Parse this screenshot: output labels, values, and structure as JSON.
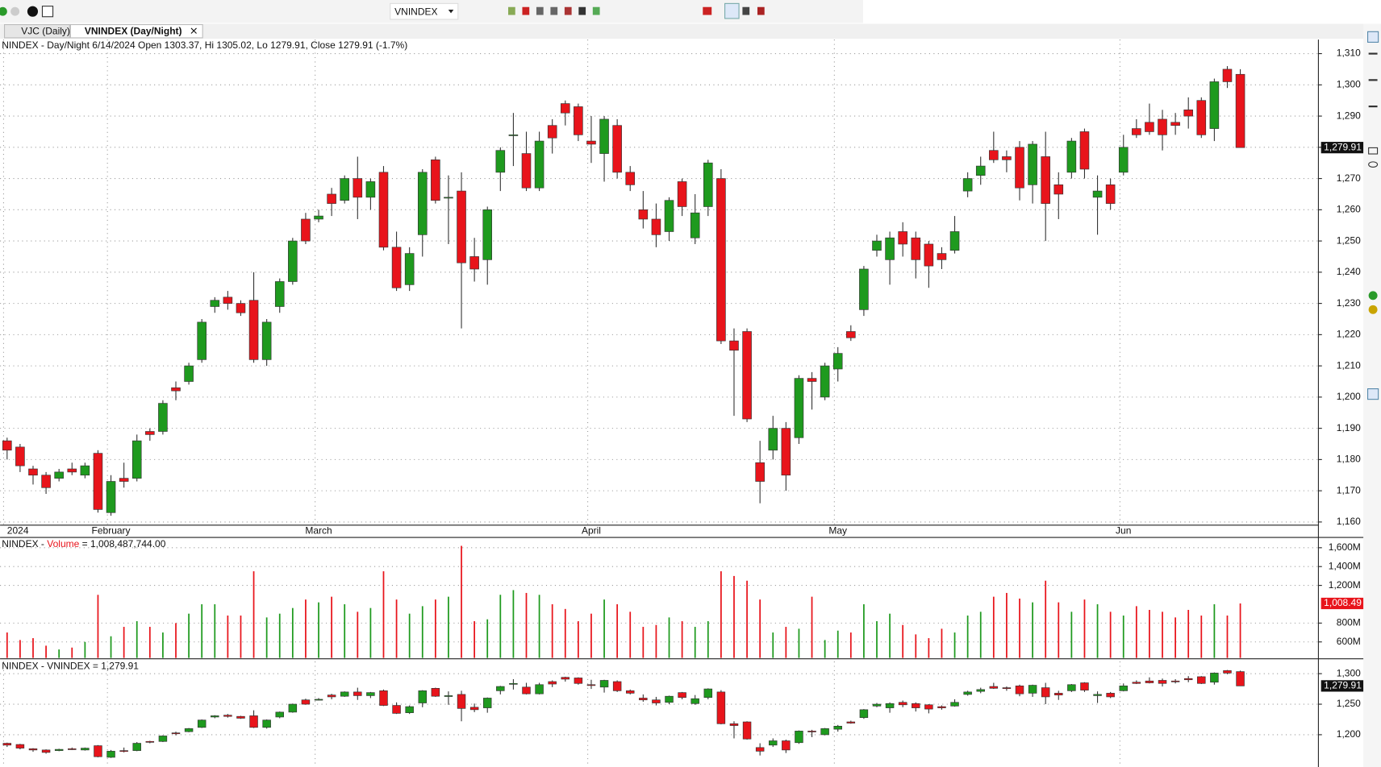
{
  "toolbar": {
    "symbol": "VNINDEX"
  },
  "tabs": [
    "VJC (Daily)",
    "VNINDEX (Day/Night)"
  ],
  "chart_data": [
    {
      "type": "candlestick",
      "title": "NINDEX - Day/Night 6/14/2024 Open 1303.37, Hi 1305.02, Lo 1279.91, Close 1279.91 (-1.7%)",
      "categories": [
        "2024",
        null,
        null,
        null,
        null,
        null,
        null,
        null,
        "February",
        null,
        null,
        null,
        null,
        null,
        null,
        null,
        null,
        null,
        null,
        null,
        null,
        null,
        null,
        null,
        "March",
        null,
        null,
        null,
        null,
        null,
        null,
        null,
        null,
        null,
        null,
        null,
        null,
        null,
        null,
        null,
        null,
        null,
        null,
        null,
        null,
        "April",
        null,
        null,
        null,
        null,
        null,
        null,
        null,
        null,
        null,
        null,
        null,
        null,
        null,
        null,
        null,
        null,
        null,
        null,
        "May",
        null,
        null,
        null,
        null,
        null,
        null,
        null,
        null,
        null,
        null,
        null,
        null,
        null,
        null,
        null,
        null,
        null,
        null,
        null,
        null,
        null,
        "Jun",
        null,
        null,
        null,
        null,
        null,
        null,
        null,
        null,
        null
      ],
      "open": [
        1186,
        1184,
        1177,
        1175,
        1174,
        1177,
        1175,
        1182,
        1163,
        1174,
        1174,
        1189,
        1189,
        1203,
        1205,
        1212,
        1229,
        1232,
        1230,
        1231,
        1212,
        1229,
        1237,
        1257,
        1257,
        1265,
        1263,
        1270,
        1264,
        1272,
        1248,
        1236,
        1252,
        1276,
        1264,
        1266,
        1245,
        1244,
        1272,
        1284,
        1278,
        1267,
        1287,
        1294,
        1293,
        1282,
        1278,
        1287,
        1272,
        1260,
        1257,
        1253,
        1269,
        1251,
        1261,
        1270,
        1218,
        1221,
        1179,
        1183,
        1190,
        1187,
        1206,
        1200,
        1209,
        1221,
        1228,
        1247,
        1244,
        1253,
        1251,
        1249,
        1246,
        1247,
        1266,
        1271,
        1279,
        1277,
        1280,
        1268,
        1277,
        1268,
        1272,
        1285,
        1264,
        1268,
        1272,
        1286,
        1288,
        1289,
        1288,
        1292,
        1295,
        1286,
        1305,
        1303.37
      ],
      "high": [
        1187,
        1185,
        1178,
        1176,
        1177,
        1179,
        1179,
        1183,
        1175,
        1179,
        1188,
        1190,
        1199,
        1205,
        1211,
        1225,
        1232,
        1234,
        1231,
        1240,
        1225,
        1238,
        1251,
        1259,
        1260,
        1267,
        1271,
        1277,
        1270,
        1274,
        1253,
        1248,
        1273,
        1277,
        1271,
        1272,
        1251,
        1261,
        1280,
        1291,
        1285,
        1285,
        1289,
        1295,
        1294,
        1290,
        1290,
        1289,
        1274,
        1266,
        1262,
        1264,
        1270,
        1265,
        1276,
        1273,
        1222,
        1222,
        1186,
        1194,
        1192,
        1207,
        1208,
        1211,
        1216,
        1223,
        1242,
        1252,
        1253,
        1256,
        1253,
        1250,
        1248,
        1258,
        1272,
        1277,
        1285,
        1279,
        1282,
        1282,
        1285,
        1272,
        1283,
        1286,
        1271,
        1270,
        1284,
        1289,
        1294,
        1292,
        1291,
        1296,
        1296,
        1302,
        1306,
        1305.02
      ],
      "low": [
        1180,
        1176,
        1172,
        1169,
        1173,
        1175,
        1174,
        1163,
        1162,
        1171,
        1173,
        1186,
        1188,
        1199,
        1204,
        1211,
        1227,
        1228,
        1226,
        1211,
        1210,
        1227,
        1236,
        1249,
        1256,
        1258,
        1262,
        1257,
        1260,
        1247,
        1234,
        1234,
        1245,
        1262,
        1249,
        1222,
        1237,
        1236,
        1266,
        1274,
        1266,
        1266,
        1278,
        1287,
        1282,
        1275,
        1269,
        1270,
        1266,
        1254,
        1248,
        1250,
        1258,
        1249,
        1258,
        1217,
        1194,
        1192,
        1166,
        1180,
        1170,
        1185,
        1196,
        1199,
        1205,
        1218,
        1226,
        1245,
        1236,
        1245,
        1238,
        1235,
        1241,
        1246,
        1264,
        1268,
        1275,
        1272,
        1263,
        1262,
        1250,
        1257,
        1270,
        1270,
        1252,
        1260,
        1271,
        1283,
        1284,
        1279,
        1284,
        1286,
        1283,
        1282,
        1299,
        1279.91
      ],
      "close": [
        1183,
        1178,
        1175,
        1171,
        1176,
        1176,
        1178,
        1164,
        1173,
        1173,
        1186,
        1188,
        1198,
        1202,
        1210,
        1224,
        1231,
        1230,
        1227,
        1212,
        1224,
        1237,
        1250,
        1250,
        1258,
        1262,
        1270,
        1264,
        1269,
        1248,
        1235,
        1246,
        1272,
        1263,
        1264,
        1243,
        1241,
        1260,
        1279,
        1284,
        1267,
        1282,
        1283,
        1291,
        1284,
        1281,
        1289,
        1272,
        1268,
        1257,
        1252,
        1263,
        1261,
        1259,
        1275,
        1218,
        1215,
        1193,
        1173,
        1190,
        1175,
        1206,
        1205,
        1210,
        1214,
        1219,
        1241,
        1250,
        1251,
        1249,
        1244,
        1242,
        1244,
        1253,
        1270,
        1274,
        1276,
        1276,
        1267,
        1281,
        1262,
        1265,
        1282,
        1273,
        1266,
        1262,
        1280,
        1284,
        1285,
        1284,
        1287,
        1290,
        1284,
        1301,
        1301,
        1279.91
      ],
      "colors": {
        "up": "#1e9a1e",
        "down": "#e8141b"
      },
      "ylim": [
        1159,
        1314.5
      ],
      "yticks": [
        {
          "value": 1160,
          "label": "1,160"
        },
        {
          "value": 1170,
          "label": "1,170"
        },
        {
          "value": 1180,
          "label": "1,180"
        },
        {
          "value": 1190,
          "label": "1,190"
        },
        {
          "value": 1200,
          "label": "1,200"
        },
        {
          "value": 1210,
          "label": "1,210"
        },
        {
          "value": 1220,
          "label": "1,220"
        },
        {
          "value": 1230,
          "label": "1,230"
        },
        {
          "value": 1240,
          "label": "1,240"
        },
        {
          "value": 1250,
          "label": "1,250"
        },
        {
          "value": 1260,
          "label": "1,260"
        },
        {
          "value": 1270,
          "label": "1,270"
        },
        {
          "value": 1280,
          "label": "1,280"
        },
        {
          "value": 1290,
          "label": "1,290"
        },
        {
          "value": 1300,
          "label": "1,300"
        },
        {
          "value": 1310,
          "label": "1,310"
        }
      ],
      "grid": true,
      "last_label": "1,279.91"
    },
    {
      "type": "bar",
      "title": "NINDEX - ",
      "title_suffix": " = 1,008,487,744.00",
      "series": [
        {
          "name": "Volume",
          "color": "#e8141b",
          "values": [
            700,
            620,
            640,
            560,
            520,
            540,
            600,
            1100,
            660,
            760,
            820,
            760,
            700,
            800,
            900,
            1000,
            1000,
            880,
            880,
            1350,
            860,
            900,
            960,
            1050,
            1020,
            1080,
            1000,
            920,
            960,
            1350,
            1050,
            900,
            980,
            1050,
            1080,
            1620,
            820,
            840,
            1100,
            1150,
            1120,
            1100,
            1000,
            950,
            820,
            900,
            1050,
            1000,
            920,
            760,
            780,
            860,
            820,
            760,
            820,
            1350,
            1300,
            1250,
            1050,
            700,
            760,
            740,
            1080,
            620,
            720,
            700,
            1000,
            820,
            900,
            780,
            680,
            640,
            740,
            700,
            880,
            920,
            1080,
            1120,
            1060,
            1020,
            1250,
            1020,
            920,
            1050,
            1000,
            920,
            880,
            980,
            940,
            920,
            860,
            940,
            880,
            1000,
            880,
            1008.49
          ]
        }
      ],
      "ylim": [
        430,
        1700
      ],
      "yticks": [
        {
          "value": 600,
          "label": "600M"
        },
        {
          "value": 800,
          "label": "800M"
        },
        {
          "value": 1200,
          "label": "1,200M"
        },
        {
          "value": 1400,
          "label": "1,400M"
        },
        {
          "value": 1600,
          "label": "1,600M"
        }
      ],
      "grid": true,
      "last_label": "1,008.49"
    },
    {
      "type": "candlestick",
      "title": "NINDEX - VNINDEX = 1,279.91",
      "ylim": [
        1150,
        1320
      ],
      "yticks": [
        {
          "value": 1200,
          "label": "1,200"
        },
        {
          "value": 1250,
          "label": "1,250"
        },
        {
          "value": 1300,
          "label": "1,300"
        }
      ],
      "grid": true,
      "last_label": "1,279.91"
    }
  ]
}
